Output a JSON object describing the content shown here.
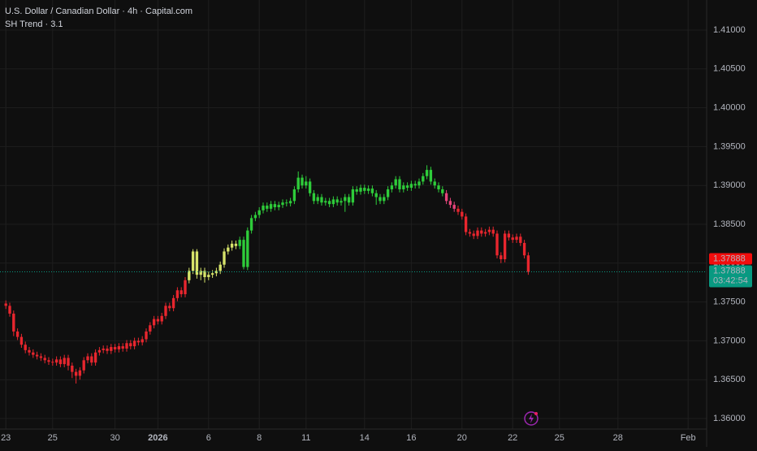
{
  "chart_data": {
    "type": "candlestick",
    "title": "U.S. Dollar / Canadian Dollar · 4h · Capital.com",
    "indicator": "SH Trend · 3.1",
    "open": [
      1.3748,
      1.3745,
      1.3735,
      1.3712,
      1.3705,
      1.3695,
      1.3688,
      1.3685,
      1.3682,
      1.368,
      1.3678,
      1.3675,
      1.3673,
      1.3672,
      1.3676,
      1.367,
      1.3678,
      1.3668,
      1.366,
      1.3655,
      1.3662,
      1.3675,
      1.368,
      1.3672,
      1.3685,
      1.3688,
      1.369,
      1.3687,
      1.3692,
      1.3689,
      1.3693,
      1.369,
      1.3697,
      1.3693,
      1.37,
      1.3698,
      1.3702,
      1.3712,
      1.372,
      1.3728,
      1.3725,
      1.3732,
      1.3745,
      1.3742,
      1.3755,
      1.3765,
      1.376,
      1.3778,
      1.379,
      1.3815,
      1.3785,
      1.379,
      1.3782,
      1.3785,
      1.3787,
      1.379,
      1.3798,
      1.3815,
      1.382,
      1.3825,
      1.3822,
      1.383,
      1.3795,
      1.3842,
      1.3858,
      1.3862,
      1.3868,
      1.3874,
      1.387,
      1.3876,
      1.3872,
      1.3875,
      1.3878,
      1.3877,
      1.388,
      1.3895,
      1.391,
      1.39,
      1.3905,
      1.389,
      1.388,
      1.3885,
      1.3878,
      1.388,
      1.3876,
      1.3882,
      1.3878,
      1.388,
      1.3885,
      1.3878,
      1.3895,
      1.3892,
      1.3897,
      1.3893,
      1.3896,
      1.389,
      1.3885,
      1.388,
      1.3885,
      1.3895,
      1.39,
      1.3908,
      1.3895,
      1.39,
      1.3897,
      1.3902,
      1.39,
      1.3905,
      1.3912,
      1.392,
      1.3905,
      1.39,
      1.3895,
      1.389,
      1.388,
      1.3875,
      1.387,
      1.3866,
      1.386,
      1.384,
      1.3838,
      1.3835,
      1.3842,
      1.3838,
      1.384,
      1.3843,
      1.3838,
      1.381,
      1.3805,
      1.3838,
      1.3833,
      1.383,
      1.3834,
      1.3826,
      1.381
    ],
    "high": [
      1.3752,
      1.3749,
      1.3739,
      1.3716,
      1.3709,
      1.3699,
      1.3692,
      1.3689,
      1.3686,
      1.3684,
      1.3682,
      1.3679,
      1.3677,
      1.368,
      1.368,
      1.3682,
      1.3682,
      1.3672,
      1.3664,
      1.3666,
      1.3679,
      1.3684,
      1.3684,
      1.3689,
      1.3692,
      1.3694,
      1.3694,
      1.3696,
      1.3696,
      1.3697,
      1.3697,
      1.3701,
      1.3701,
      1.3704,
      1.3704,
      1.3706,
      1.3716,
      1.3724,
      1.3732,
      1.3732,
      1.3736,
      1.3749,
      1.3749,
      1.3759,
      1.3769,
      1.3769,
      1.3782,
      1.3794,
      1.3818,
      1.3818,
      1.3794,
      1.3794,
      1.3789,
      1.3791,
      1.3794,
      1.3802,
      1.3819,
      1.3824,
      1.3829,
      1.3829,
      1.3834,
      1.3834,
      1.3846,
      1.3862,
      1.3866,
      1.3872,
      1.3878,
      1.3878,
      1.388,
      1.388,
      1.3879,
      1.3882,
      1.3882,
      1.3884,
      1.3899,
      1.3918,
      1.3914,
      1.3912,
      1.3909,
      1.3894,
      1.3889,
      1.3889,
      1.3884,
      1.3884,
      1.3886,
      1.3886,
      1.3884,
      1.3889,
      1.3889,
      1.3899,
      1.3899,
      1.3901,
      1.3901,
      1.39,
      1.39,
      1.3894,
      1.3889,
      1.3889,
      1.3899,
      1.3904,
      1.3912,
      1.3912,
      1.3904,
      1.3904,
      1.3906,
      1.3906,
      1.3909,
      1.3916,
      1.3926,
      1.3924,
      1.3909,
      1.3904,
      1.3899,
      1.3894,
      1.3884,
      1.3879,
      1.3874,
      1.387,
      1.3864,
      1.3844,
      1.3842,
      1.3846,
      1.3846,
      1.3844,
      1.3847,
      1.3847,
      1.3842,
      1.3814,
      1.3842,
      1.3842,
      1.3837,
      1.3838,
      1.3838,
      1.383,
      1.3814
    ],
    "low": [
      1.3741,
      1.3731,
      1.3706,
      1.3701,
      1.3691,
      1.3684,
      1.3681,
      1.3678,
      1.3676,
      1.3674,
      1.3671,
      1.3669,
      1.3668,
      1.3668,
      1.3666,
      1.3666,
      1.3662,
      1.3652,
      1.3645,
      1.365,
      1.3658,
      1.3671,
      1.3668,
      1.3668,
      1.3681,
      1.3684,
      1.3683,
      1.3683,
      1.3685,
      1.3685,
      1.3686,
      1.3686,
      1.3689,
      1.3689,
      1.3694,
      1.3694,
      1.3698,
      1.3708,
      1.3716,
      1.3721,
      1.3721,
      1.3728,
      1.3738,
      1.3738,
      1.3751,
      1.3756,
      1.3756,
      1.3774,
      1.3786,
      1.378,
      1.3778,
      1.3775,
      1.3778,
      1.3781,
      1.3783,
      1.3786,
      1.3794,
      1.3811,
      1.3816,
      1.3818,
      1.3818,
      1.3792,
      1.3791,
      1.3838,
      1.3854,
      1.3858,
      1.3864,
      1.3866,
      1.3866,
      1.3868,
      1.3868,
      1.3871,
      1.3873,
      1.3873,
      1.3876,
      1.3891,
      1.3896,
      1.3896,
      1.3886,
      1.3876,
      1.3876,
      1.3874,
      1.3874,
      1.3872,
      1.3872,
      1.3874,
      1.3874,
      1.3866,
      1.3874,
      1.3874,
      1.3888,
      1.3888,
      1.3889,
      1.3889,
      1.3886,
      1.3875,
      1.3876,
      1.3876,
      1.3881,
      1.3891,
      1.3896,
      1.3891,
      1.3891,
      1.3893,
      1.3893,
      1.3896,
      1.3896,
      1.3901,
      1.3908,
      1.3901,
      1.3896,
      1.3891,
      1.3886,
      1.3876,
      1.3871,
      1.3866,
      1.3862,
      1.3856,
      1.3836,
      1.3834,
      1.3831,
      1.3831,
      1.3834,
      1.3834,
      1.3836,
      1.3834,
      1.3806,
      1.38,
      1.3801,
      1.3829,
      1.3826,
      1.3826,
      1.3822,
      1.3806,
      1.3785
    ],
    "close": [
      1.3745,
      1.3735,
      1.3712,
      1.3705,
      1.3695,
      1.3688,
      1.3685,
      1.3682,
      1.368,
      1.3678,
      1.3675,
      1.3673,
      1.3672,
      1.3676,
      1.367,
      1.3678,
      1.3668,
      1.366,
      1.3655,
      1.3662,
      1.3675,
      1.368,
      1.3672,
      1.3685,
      1.3688,
      1.369,
      1.3687,
      1.3692,
      1.3689,
      1.3693,
      1.369,
      1.3697,
      1.3693,
      1.37,
      1.3698,
      1.3702,
      1.3712,
      1.372,
      1.3728,
      1.3725,
      1.3732,
      1.3745,
      1.3742,
      1.3755,
      1.3765,
      1.376,
      1.3778,
      1.379,
      1.3815,
      1.3785,
      1.379,
      1.3782,
      1.3785,
      1.3787,
      1.379,
      1.3798,
      1.3815,
      1.382,
      1.3825,
      1.3822,
      1.383,
      1.3795,
      1.3842,
      1.3858,
      1.3862,
      1.3868,
      1.3874,
      1.387,
      1.3876,
      1.3872,
      1.3875,
      1.3878,
      1.3877,
      1.388,
      1.3895,
      1.391,
      1.39,
      1.3905,
      1.389,
      1.388,
      1.3885,
      1.3878,
      1.388,
      1.3876,
      1.3882,
      1.3878,
      1.388,
      1.3885,
      1.3878,
      1.3895,
      1.3892,
      1.3897,
      1.3893,
      1.3896,
      1.389,
      1.3885,
      1.388,
      1.3885,
      1.3895,
      1.39,
      1.3908,
      1.3895,
      1.39,
      1.3897,
      1.3902,
      1.39,
      1.3905,
      1.3912,
      1.392,
      1.3905,
      1.39,
      1.3895,
      1.389,
      1.388,
      1.3875,
      1.387,
      1.3866,
      1.386,
      1.384,
      1.3838,
      1.3835,
      1.3842,
      1.3838,
      1.384,
      1.3843,
      1.3838,
      1.381,
      1.3805,
      1.3838,
      1.3833,
      1.383,
      1.3834,
      1.3826,
      1.381,
      1.37888
    ],
    "colors": [
      "#e8262e",
      "#e8262e",
      "#e8262e",
      "#e8262e",
      "#e8262e",
      "#e8262e",
      "#e8262e",
      "#e8262e",
      "#e8262e",
      "#e8262e",
      "#e8262e",
      "#e8262e",
      "#e8262e",
      "#e8262e",
      "#e8262e",
      "#e8262e",
      "#e8262e",
      "#e8262e",
      "#e8262e",
      "#e8262e",
      "#e8262e",
      "#e8262e",
      "#e8262e",
      "#e8262e",
      "#e8262e",
      "#e8262e",
      "#e8262e",
      "#e8262e",
      "#e8262e",
      "#e8262e",
      "#e8262e",
      "#e8262e",
      "#e8262e",
      "#e8262e",
      "#e8262e",
      "#e8262e",
      "#e8262e",
      "#e8262e",
      "#e8262e",
      "#e8262e",
      "#e8262e",
      "#e8262e",
      "#e8262e",
      "#e8262e",
      "#e8262e",
      "#e8262e",
      "#e8262e",
      "#d6e36a",
      "#d6e36a",
      "#d6e36a",
      "#d6e36a",
      "#d6e36a",
      "#d6e36a",
      "#d6e36a",
      "#d6e36a",
      "#d6e36a",
      "#d6e36a",
      "#d6e36a",
      "#d6e36a",
      "#d6e36a",
      "#2ecc3a",
      "#2ecc3a",
      "#2ecc3a",
      "#2ecc3a",
      "#2ecc3a",
      "#2ecc3a",
      "#2ecc3a",
      "#2ecc3a",
      "#2ecc3a",
      "#2ecc3a",
      "#2ecc3a",
      "#2ecc3a",
      "#2ecc3a",
      "#2ecc3a",
      "#2ecc3a",
      "#2ecc3a",
      "#2ecc3a",
      "#2ecc3a",
      "#2ecc3a",
      "#2ecc3a",
      "#2ecc3a",
      "#2ecc3a",
      "#2ecc3a",
      "#2ecc3a",
      "#2ecc3a",
      "#2ecc3a",
      "#2ecc3a",
      "#2ecc3a",
      "#2ecc3a",
      "#2ecc3a",
      "#2ecc3a",
      "#2ecc3a",
      "#2ecc3a",
      "#2ecc3a",
      "#2ecc3a",
      "#2ecc3a",
      "#2ecc3a",
      "#2ecc3a",
      "#2ecc3a",
      "#2ecc3a",
      "#2ecc3a",
      "#2ecc3a",
      "#2ecc3a",
      "#2ecc3a",
      "#2ecc3a",
      "#2ecc3a",
      "#2ecc3a",
      "#2ecc3a",
      "#2ecc3a",
      "#2ecc3a",
      "#2ecc3a",
      "#2ecc3a",
      "#2ecc3a",
      "#e8457c",
      "#e8457c",
      "#e8457c",
      "#e8262e",
      "#e8262e",
      "#e8262e",
      "#e8262e",
      "#e8262e",
      "#e8262e",
      "#e8262e",
      "#e8262e",
      "#e8262e",
      "#e8262e",
      "#e8262e",
      "#e8262e",
      "#e8262e",
      "#e8262e",
      "#e8262e",
      "#e8262e",
      "#e8262e",
      "#e8262e",
      "#e8262e"
    ],
    "xlim": [
      -1.5,
      179.75
    ],
    "xticks": [
      {
        "value": 0,
        "label": "23"
      },
      {
        "value": 12,
        "label": "25"
      },
      {
        "value": 28,
        "label": "30"
      },
      {
        "value": 39,
        "label": "2026"
      },
      {
        "value": 52,
        "label": "6"
      },
      {
        "value": 65,
        "label": "8"
      },
      {
        "value": 77,
        "label": "11"
      },
      {
        "value": 92,
        "label": "14"
      },
      {
        "value": 104,
        "label": "16"
      },
      {
        "value": 117,
        "label": "20"
      },
      {
        "value": 130,
        "label": "22"
      },
      {
        "value": 142,
        "label": "25"
      },
      {
        "value": 157,
        "label": "28"
      },
      {
        "value": 175,
        "label": "Feb"
      }
    ],
    "ylim": [
      1.35864,
      1.41387
    ],
    "yticks": [
      {
        "value": 1.36,
        "label": "1.36000"
      },
      {
        "value": 1.365,
        "label": "1.36500"
      },
      {
        "value": 1.37,
        "label": "1.37000"
      },
      {
        "value": 1.375,
        "label": "1.37500"
      },
      {
        "value": 1.38,
        "label": "1.38000"
      },
      {
        "value": 1.385,
        "label": "1.38500"
      },
      {
        "value": 1.39,
        "label": "1.39000"
      },
      {
        "value": 1.395,
        "label": "1.39500"
      },
      {
        "value": 1.4,
        "label": "1.40000"
      },
      {
        "value": 1.405,
        "label": "1.40500"
      },
      {
        "value": 1.41,
        "label": "1.41000"
      }
    ],
    "grid": true,
    "indicator_value": 1.37888,
    "indicator_color": "#f20d0d",
    "last_price": 1.37888,
    "last_price_color": "#089981",
    "countdown": "03:42:54"
  }
}
